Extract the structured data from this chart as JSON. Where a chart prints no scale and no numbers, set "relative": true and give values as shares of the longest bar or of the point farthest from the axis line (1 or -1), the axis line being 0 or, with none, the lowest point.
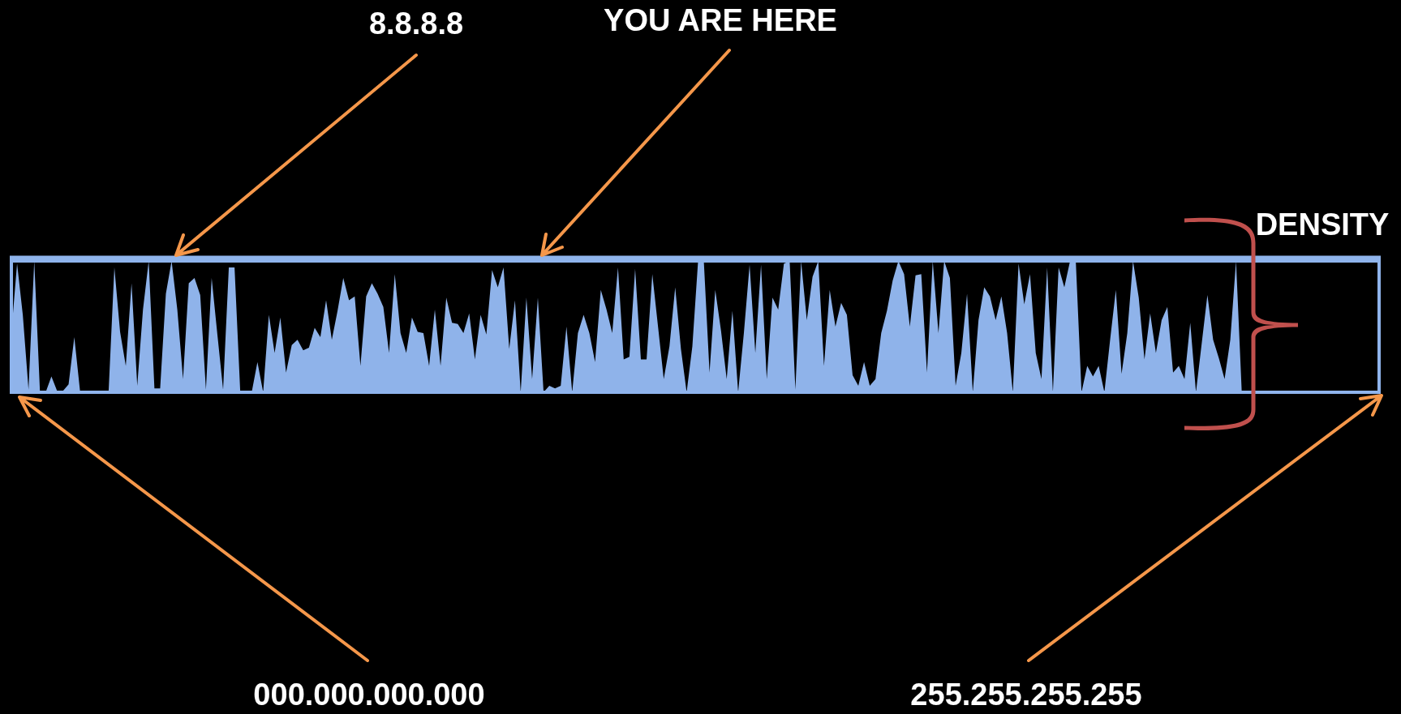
{
  "chart_data": {
    "type": "area",
    "relative": true,
    "annotations": [
      "8.8.8.8",
      "YOU ARE HERE",
      "000.000.000.000",
      "255.255.255.255",
      "DENSITY"
    ],
    "categories": [
      null,
      null,
      null,
      null,
      null,
      null,
      null,
      null,
      null,
      null,
      null,
      null,
      null,
      null,
      null,
      null,
      null,
      null,
      null,
      null,
      null,
      null,
      null,
      null,
      null,
      null,
      null,
      null,
      null,
      null,
      null,
      null,
      null,
      null,
      null,
      null,
      null,
      null,
      null,
      null,
      null,
      null,
      null,
      null,
      null,
      null,
      null,
      null,
      null,
      null,
      null,
      null,
      null,
      null,
      null,
      null,
      null,
      null,
      null,
      null,
      null,
      null,
      null,
      null,
      null,
      null,
      null,
      null,
      null,
      null,
      null,
      null,
      null,
      null,
      null,
      null,
      null,
      null,
      null,
      null,
      null,
      null,
      null,
      null,
      null,
      null,
      null,
      null,
      null,
      null,
      null,
      null,
      null,
      null,
      null,
      null,
      null,
      null,
      null,
      null,
      null,
      null,
      null,
      null,
      null,
      null,
      null,
      null,
      null,
      null,
      null,
      null,
      null,
      null,
      null,
      null,
      null,
      null,
      null,
      null,
      null,
      null,
      null,
      null,
      null,
      null,
      null,
      null,
      null,
      null,
      null,
      null,
      null,
      null,
      null,
      null,
      null,
      null,
      null,
      null,
      null,
      null,
      null,
      null,
      null,
      null,
      null,
      null,
      null,
      null,
      null,
      null,
      null,
      null,
      null,
      null,
      null,
      null,
      null,
      null,
      null,
      null,
      null,
      null,
      null,
      null,
      null,
      null,
      null,
      null,
      null,
      null,
      null,
      null,
      null,
      null,
      null,
      null,
      null,
      null,
      null,
      null,
      null,
      null,
      null,
      null,
      null,
      null,
      null,
      null,
      null,
      null,
      null,
      null,
      null,
      null,
      null,
      null,
      null,
      null,
      null,
      null,
      null,
      null,
      null,
      null,
      null,
      null,
      null,
      null,
      null,
      null,
      null,
      null,
      null,
      null,
      null,
      null,
      null,
      null,
      null,
      null,
      null,
      null,
      null,
      null,
      null,
      null,
      null,
      null,
      null,
      null,
      null,
      null,
      null,
      null,
      null,
      null,
      null,
      null
    ],
    "series": [
      {
        "color": "#8fb3ea",
        "values": [
          0.45,
          0.98,
          0.59,
          0.02,
          1.0,
          0,
          0,
          0.12,
          0.01,
          0.01,
          0.06,
          0.42,
          0.01,
          0,
          0,
          0,
          0,
          0.01,
          0.95,
          0.46,
          0.2,
          0.83,
          0.05,
          0.63,
          1.0,
          0.03,
          0.03,
          0.75,
          1.0,
          0.63,
          0.1,
          0.83,
          0.87,
          0.74,
          0.02,
          0.87,
          0.44,
          0.02,
          0.95,
          0.95,
          0,
          0,
          0,
          0.23,
          0,
          0.59,
          0.3,
          0.57,
          0.15,
          0.36,
          0.4,
          0.32,
          0.34,
          0.49,
          0.42,
          0.7,
          0.4,
          0.62,
          0.87,
          0.7,
          0.73,
          0.2,
          0.73,
          0.83,
          0.75,
          0.65,
          0.3,
          0.9,
          0.45,
          0.3,
          0.57,
          0.46,
          0.45,
          0.2,
          0.63,
          0.2,
          0.72,
          0.53,
          0.52,
          0.45,
          0.6,
          0.25,
          0.59,
          0.44,
          0.93,
          0.8,
          0.95,
          0.33,
          0.7,
          0,
          0.72,
          0.1,
          0.72,
          0,
          0.05,
          0.03,
          0.05,
          0.5,
          0,
          0.45,
          0.59,
          0.45,
          0.23,
          0.78,
          0.63,
          0.45,
          0.95,
          0.25,
          0.27,
          0.94,
          0.25,
          0.25,
          0.9,
          0.5,
          0.1,
          0.35,
          0.8,
          0.33,
          0,
          0.35,
          1.0,
          1.0,
          0.15,
          0.78,
          0.47,
          0.1,
          0.62,
          0,
          0.45,
          0.97,
          0.3,
          0.97,
          0.1,
          0.72,
          0.63,
          0.98,
          1.0,
          0.02,
          1.0,
          0.55,
          0.88,
          1.0,
          0.2,
          0.78,
          0.5,
          0.68,
          0.59,
          0.13,
          0.05,
          0.23,
          0.05,
          0.1,
          0.45,
          0.62,
          0.85,
          1.0,
          0.9,
          0.5,
          0.89,
          0.9,
          0.15,
          1.0,
          0.45,
          1.0,
          0.87,
          0.05,
          0.3,
          0.75,
          0,
          0.55,
          0.8,
          0.73,
          0.55,
          0.73,
          0.45,
          0,
          0.98,
          0.67,
          0.9,
          0.3,
          0.1,
          0.95,
          0,
          0.95,
          0.8,
          1.0,
          1.0,
          0,
          0.2,
          0.12,
          0.2,
          0,
          0.4,
          0.78,
          0.14,
          0.45,
          1.0,
          0.72,
          0.25,
          0.6,
          0.3,
          0.55,
          0.65,
          0.15,
          0.2,
          0.1,
          0.53,
          0,
          0.37,
          0.74,
          0.4,
          0.26,
          0.1,
          0.4,
          1.0,
          0,
          0,
          null,
          0,
          0,
          0,
          0,
          0,
          0,
          0,
          0,
          0,
          0,
          0,
          0,
          0,
          0,
          0,
          0,
          0,
          0,
          0,
          0,
          0,
          0
        ]
      }
    ]
  }
}
